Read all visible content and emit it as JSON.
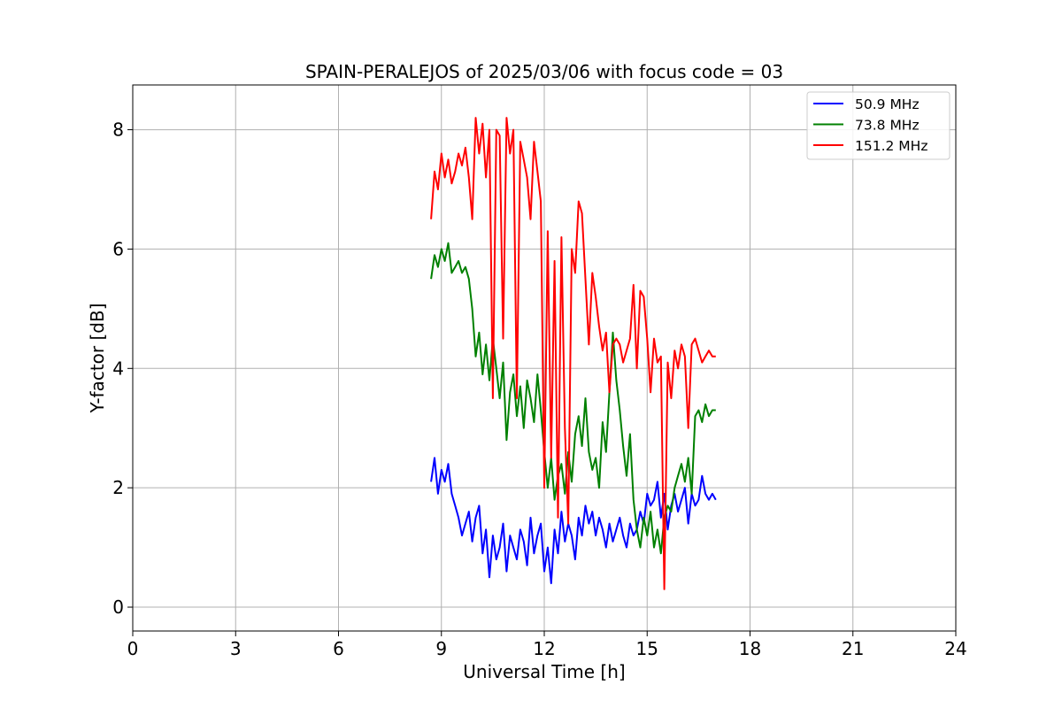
{
  "chart_data": {
    "type": "line",
    "title": "SPAIN-PERALEJOS of 2025/03/06 with focus code = 03",
    "xlabel": "Universal Time [h]",
    "ylabel": "Y-factor [dB]",
    "xlim": [
      0,
      24
    ],
    "ylim": [
      -0.4,
      8.75
    ],
    "xticks": [
      0,
      3,
      6,
      9,
      12,
      15,
      18,
      21,
      24
    ],
    "yticks": [
      0,
      2,
      4,
      6,
      8
    ],
    "grid": true,
    "legend_position": "top-right",
    "series": [
      {
        "name": "  50.9 MHz",
        "color": "#0000ff",
        "x": [
          8.7,
          8.8,
          8.9,
          9.0,
          9.1,
          9.2,
          9.3,
          9.4,
          9.5,
          9.6,
          9.7,
          9.8,
          9.9,
          10.0,
          10.1,
          10.2,
          10.3,
          10.4,
          10.5,
          10.6,
          10.7,
          10.8,
          10.9,
          11.0,
          11.1,
          11.2,
          11.3,
          11.4,
          11.5,
          11.6,
          11.7,
          11.8,
          11.9,
          12.0,
          12.1,
          12.2,
          12.3,
          12.4,
          12.5,
          12.6,
          12.7,
          12.8,
          12.9,
          13.0,
          13.1,
          13.2,
          13.3,
          13.4,
          13.5,
          13.6,
          13.7,
          13.8,
          13.9,
          14.0,
          14.1,
          14.2,
          14.3,
          14.4,
          14.5,
          14.6,
          14.7,
          14.8,
          14.9,
          15.0,
          15.1,
          15.2,
          15.3,
          15.4,
          15.5,
          15.6,
          15.7,
          15.8,
          15.9,
          16.0,
          16.1,
          16.2,
          16.3,
          16.4,
          16.5,
          16.6,
          16.7,
          16.8,
          16.9,
          17.0
        ],
        "y": [
          2.1,
          2.5,
          1.9,
          2.3,
          2.1,
          2.4,
          1.9,
          1.7,
          1.5,
          1.2,
          1.4,
          1.6,
          1.1,
          1.5,
          1.7,
          0.9,
          1.3,
          0.5,
          1.2,
          0.8,
          1.0,
          1.4,
          0.6,
          1.2,
          1.0,
          0.8,
          1.3,
          1.1,
          0.7,
          1.5,
          0.9,
          1.2,
          1.4,
          0.6,
          1.0,
          0.4,
          1.3,
          0.9,
          1.6,
          1.1,
          1.4,
          1.2,
          0.8,
          1.5,
          1.2,
          1.7,
          1.4,
          1.6,
          1.2,
          1.5,
          1.3,
          1.0,
          1.4,
          1.1,
          1.3,
          1.5,
          1.2,
          1.0,
          1.4,
          1.2,
          1.3,
          1.6,
          1.4,
          1.9,
          1.7,
          1.8,
          2.1,
          1.5,
          1.9,
          1.3,
          1.7,
          1.9,
          1.6,
          1.8,
          2.0,
          1.4,
          1.9,
          1.7,
          1.8,
          2.2,
          1.9,
          1.8,
          1.9,
          1.8
        ]
      },
      {
        "name": "  73.8 MHz",
        "color": "#008000",
        "x": [
          8.7,
          8.8,
          8.9,
          9.0,
          9.1,
          9.2,
          9.3,
          9.4,
          9.5,
          9.6,
          9.7,
          9.8,
          9.9,
          10.0,
          10.1,
          10.2,
          10.3,
          10.4,
          10.5,
          10.6,
          10.7,
          10.8,
          10.9,
          11.0,
          11.1,
          11.2,
          11.3,
          11.4,
          11.5,
          11.6,
          11.7,
          11.8,
          11.9,
          12.0,
          12.1,
          12.2,
          12.3,
          12.4,
          12.5,
          12.6,
          12.7,
          12.8,
          12.9,
          13.0,
          13.1,
          13.2,
          13.3,
          13.4,
          13.5,
          13.6,
          13.7,
          13.8,
          13.9,
          14.0,
          14.1,
          14.2,
          14.3,
          14.4,
          14.5,
          14.6,
          14.7,
          14.8,
          14.9,
          15.0,
          15.1,
          15.2,
          15.3,
          15.4,
          15.5,
          15.6,
          15.7,
          15.8,
          15.9,
          16.0,
          16.1,
          16.2,
          16.3,
          16.4,
          16.5,
          16.6,
          16.7,
          16.8,
          16.9,
          17.0
        ],
        "y": [
          5.5,
          5.9,
          5.7,
          6.0,
          5.8,
          6.1,
          5.6,
          5.7,
          5.8,
          5.6,
          5.7,
          5.5,
          5.0,
          4.2,
          4.6,
          3.9,
          4.4,
          3.8,
          4.5,
          4.0,
          3.5,
          4.1,
          2.8,
          3.6,
          3.9,
          3.2,
          3.7,
          3.0,
          3.8,
          3.5,
          3.1,
          3.9,
          3.3,
          2.6,
          2.0,
          2.5,
          1.8,
          2.2,
          2.4,
          1.9,
          2.6,
          2.1,
          2.9,
          3.2,
          2.7,
          3.5,
          2.6,
          2.3,
          2.5,
          2.0,
          3.1,
          2.6,
          3.6,
          4.6,
          3.8,
          3.3,
          2.7,
          2.2,
          2.9,
          1.8,
          1.3,
          1.0,
          1.5,
          1.2,
          1.6,
          1.0,
          1.3,
          0.9,
          1.5,
          1.7,
          1.6,
          2.0,
          2.2,
          2.4,
          2.1,
          2.5,
          1.9,
          3.2,
          3.3,
          3.1,
          3.4,
          3.2,
          3.3,
          3.3
        ]
      },
      {
        "name": " 151.2 MHz",
        "color": "#ff0000",
        "x": [
          8.7,
          8.8,
          8.9,
          9.0,
          9.1,
          9.2,
          9.3,
          9.4,
          9.5,
          9.6,
          9.7,
          9.8,
          9.9,
          10.0,
          10.1,
          10.2,
          10.3,
          10.4,
          10.5,
          10.6,
          10.7,
          10.8,
          10.9,
          11.0,
          11.1,
          11.2,
          11.3,
          11.4,
          11.5,
          11.6,
          11.7,
          11.8,
          11.9,
          12.0,
          12.1,
          12.2,
          12.3,
          12.4,
          12.5,
          12.6,
          12.7,
          12.8,
          12.9,
          13.0,
          13.1,
          13.2,
          13.3,
          13.4,
          13.5,
          13.6,
          13.7,
          13.8,
          13.9,
          14.0,
          14.1,
          14.2,
          14.3,
          14.4,
          14.5,
          14.6,
          14.7,
          14.8,
          14.9,
          15.0,
          15.1,
          15.2,
          15.3,
          15.4,
          15.5,
          15.6,
          15.7,
          15.8,
          15.9,
          16.0,
          16.1,
          16.2,
          16.3,
          16.4,
          16.5,
          16.6,
          16.7,
          16.8,
          16.9,
          17.0
        ],
        "y": [
          6.5,
          7.3,
          7.0,
          7.6,
          7.2,
          7.5,
          7.1,
          7.3,
          7.6,
          7.4,
          7.7,
          7.2,
          6.5,
          8.2,
          7.6,
          8.1,
          7.2,
          8.0,
          3.5,
          8.0,
          7.9,
          4.5,
          8.2,
          7.6,
          8.0,
          3.5,
          7.8,
          7.5,
          7.2,
          6.5,
          7.8,
          7.3,
          6.8,
          2.0,
          6.3,
          2.5,
          5.8,
          1.5,
          6.2,
          3.0,
          1.4,
          6.0,
          5.6,
          6.8,
          6.6,
          5.5,
          4.4,
          5.6,
          5.2,
          4.7,
          4.3,
          4.6,
          3.6,
          4.4,
          4.5,
          4.4,
          4.1,
          4.3,
          4.5,
          5.4,
          4.0,
          5.3,
          5.2,
          4.5,
          3.6,
          4.5,
          4.1,
          4.2,
          0.3,
          4.1,
          3.5,
          4.3,
          4.0,
          4.4,
          4.2,
          3.0,
          4.4,
          4.5,
          4.3,
          4.1,
          4.2,
          4.3,
          4.2,
          4.2
        ]
      }
    ]
  }
}
